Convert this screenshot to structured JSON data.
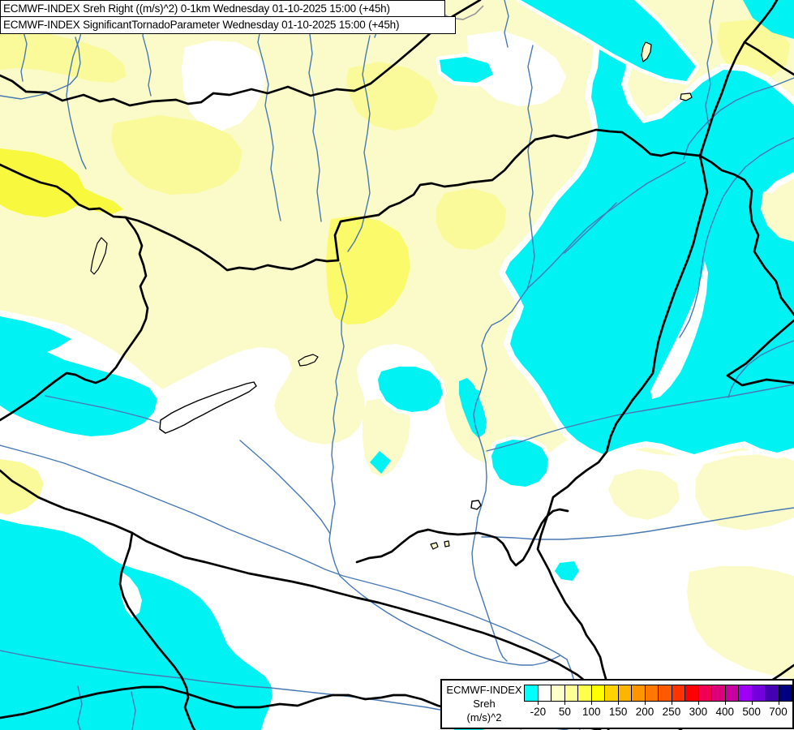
{
  "map": {
    "title_line1": "ECMWF-INDEX Sreh Right ((m/s)^2) 0-1km Wednesday 01-10-2025 15:00 (+45h)",
    "title_line2": "ECMWF-INDEX SignificantTornadoParameter Wednesday 01-10-2025 15:00 (+45h)",
    "region_features": [
      "country-borders",
      "rivers",
      "lake-balaton",
      "lake-neusiedl",
      "lake-velence"
    ]
  },
  "legend": {
    "product": "ECMWF-INDEX",
    "parameter": "Sreh",
    "units": "(m/s)^2",
    "tick_labels": [
      "-20",
      "50",
      "100",
      "150",
      "200",
      "250",
      "300",
      "400",
      "500",
      "700"
    ],
    "tick_boundary_indices": [
      1,
      3,
      5,
      7,
      9,
      11,
      13,
      15,
      17,
      19
    ],
    "colors": [
      "#00ffff",
      "#ffffff",
      "#ffffc8",
      "#ffff96",
      "#ffff4b",
      "#ffff00",
      "#ffd200",
      "#ffb400",
      "#ff9600",
      "#ff7800",
      "#ff5a00",
      "#ff3200",
      "#ff0000",
      "#f00050",
      "#dc0078",
      "#c800a0",
      "#9f00f5",
      "#7300dc",
      "#4600b4",
      "#000082"
    ]
  },
  "map_colors": {
    "fill_below_neg20": "#00f2f2",
    "fill_neg20_25": "#ffffff",
    "fill_25_50": "#fbfbca",
    "fill_50_75": "#fafa9a",
    "fill_75_100": "#f8f83e",
    "river": "#4878b4",
    "border": "#000000"
  }
}
